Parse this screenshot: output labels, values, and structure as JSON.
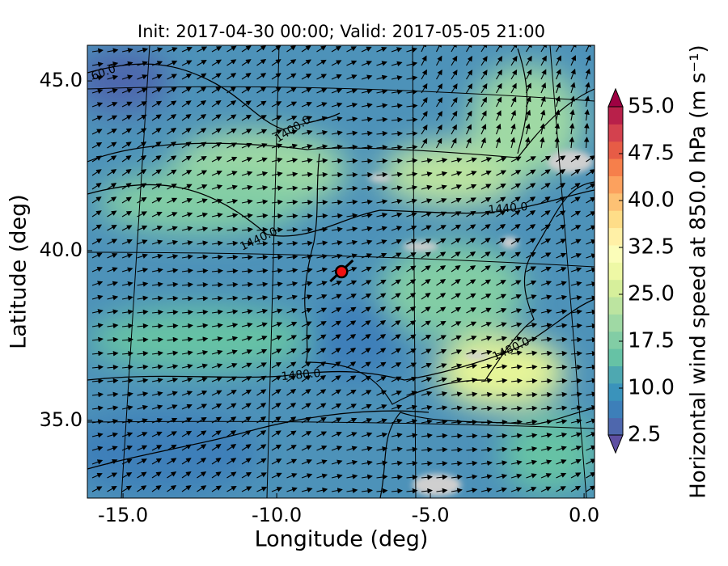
{
  "chart_data": {
    "type": "map",
    "title": "Init: 2017-04-30 00:00; Valid: 2017-05-05 21:00",
    "xlabel": "Longitude (deg)",
    "ylabel": "Latitude (deg)",
    "xlim": [
      -16.16,
      0.34
    ],
    "ylim": [
      32.71,
      46.05
    ],
    "xticks": [
      {
        "value": -15,
        "label": "-15.0"
      },
      {
        "value": -10,
        "label": "-10.0"
      },
      {
        "value": -5,
        "label": "-5.0"
      },
      {
        "value": 0,
        "label": "0.0"
      }
    ],
    "yticks": [
      {
        "value": 35,
        "label": "35.0"
      },
      {
        "value": 40,
        "label": "40.0"
      },
      {
        "value": 45,
        "label": "45.0"
      }
    ],
    "contour_labels": [
      "60.0",
      "1400.0",
      "1440.0",
      "1440.0",
      "1480.0",
      "1480.0"
    ],
    "marker": {
      "lon": -7.89,
      "lat": 39.38,
      "color": "#ee1111"
    },
    "colorbar": {
      "label": "Horizontal wind speed at 850.0 hPa (m s⁻¹)",
      "lim": [
        2.5,
        55
      ],
      "ticks": [
        2.5,
        {
          "value": 10,
          "label": "10.0"
        },
        {
          "value": 17.5,
          "label": "17.5"
        },
        {
          "value": 25,
          "label": "25.0"
        },
        {
          "value": 32.5,
          "label": "32.5"
        },
        {
          "value": 40,
          "label": "40.0"
        },
        {
          "value": 47.5,
          "label": "47.5"
        },
        {
          "value": 55,
          "label": "55.0"
        }
      ],
      "colors": [
        "#5e4fa2",
        "#4e67ad",
        "#3d7fb9",
        "#3a93bb",
        "#4ea8b1",
        "#66c2a5",
        "#82cda5",
        "#9fd9a4",
        "#bce4a0",
        "#d6ef9b",
        "#eef8a5",
        "#fbfdb9",
        "#fff0a6",
        "#fedd88",
        "#fdc174",
        "#fca15e",
        "#f67f4b",
        "#e75c46",
        "#d3414e",
        "#b8204a",
        "#9e0142"
      ]
    }
  }
}
